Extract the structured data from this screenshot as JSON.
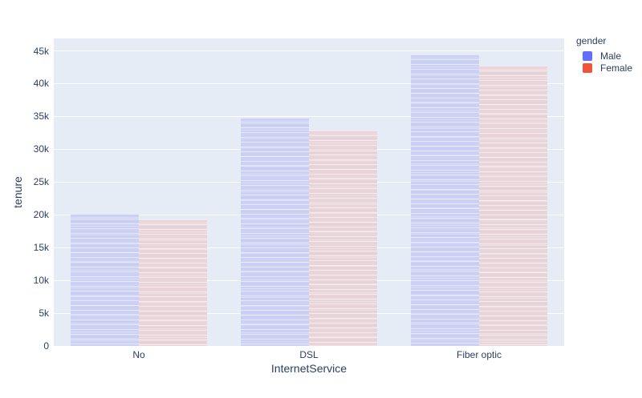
{
  "colors": {
    "plot_background": "#e5ecf6",
    "paper_background": "#ffffff",
    "gridline": "#ffffff",
    "text": "#2a3f5f"
  },
  "chart_data": {
    "type": "bar",
    "title": "",
    "xlabel": "InternetService",
    "ylabel": "tenure",
    "legend_title": "gender",
    "legend_position": "top-right",
    "grid": true,
    "categories": [
      "No",
      "DSL",
      "Fiber optic"
    ],
    "series": [
      {
        "name": "Male",
        "swatch_color": "#636EFA",
        "fill_color": "#cbd1f5",
        "values": [
          20100,
          34800,
          44400
        ]
      },
      {
        "name": "Female",
        "swatch_color": "#EF553B",
        "fill_color": "#e9d5d9",
        "values": [
          19300,
          32900,
          42800
        ]
      }
    ],
    "ylim": [
      0,
      46900
    ],
    "ytick_values": [
      0,
      5000,
      10000,
      15000,
      20000,
      25000,
      30000,
      35000,
      40000,
      45000
    ],
    "ytick_labels": [
      "0",
      "5k",
      "10k",
      "15k",
      "20k",
      "25k",
      "30k",
      "35k",
      "40k",
      "45k"
    ]
  }
}
